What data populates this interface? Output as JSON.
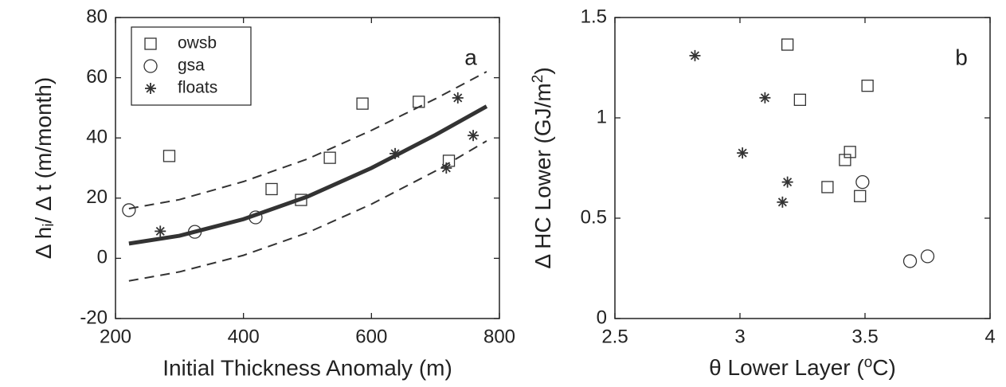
{
  "chart_data": [
    {
      "type": "scatter",
      "xlabel": "Initial Thickness Anomaly (m)",
      "ylabel": [
        "Δ h",
        "i",
        "/ Δ t (m/month)"
      ],
      "annotation": "a",
      "xlim": [
        200,
        800
      ],
      "xticks": [
        200,
        400,
        600,
        800
      ],
      "ylim": [
        -20,
        80
      ],
      "yticks": [
        -20,
        0,
        20,
        40,
        60,
        80
      ],
      "legend": "upper left",
      "series": [
        {
          "name": "owsb",
          "marker": "square",
          "color": "#333333",
          "x": [
            284,
            586,
            674,
            535,
            444,
            490,
            721
          ],
          "values": [
            34,
            51.4,
            52,
            33.4,
            23,
            19.4,
            32.4
          ]
        },
        {
          "name": "gsa",
          "marker": "circle",
          "color": "#333333",
          "x": [
            221,
            324,
            419
          ],
          "values": [
            16,
            8.8,
            13.6
          ]
        },
        {
          "name": "floats",
          "marker": "asterisk",
          "color": "#333333",
          "x": [
            270,
            637,
            717,
            735,
            759
          ],
          "values": [
            9,
            34.8,
            30,
            53.3,
            40.8
          ]
        },
        {
          "marker": "none",
          "line": "solid",
          "color": "#333333",
          "x": [
            221,
            300,
            400,
            500,
            600,
            700,
            780
          ],
          "values": [
            4.9,
            7.5,
            13,
            20.5,
            30,
            41,
            50.5
          ]
        },
        {
          "marker": "none",
          "line": "dashed",
          "color": "#333333",
          "x": [
            221,
            300,
            400,
            500,
            600,
            700,
            780
          ],
          "values": [
            16.5,
            19.5,
            25.5,
            33,
            42.5,
            53,
            62
          ]
        },
        {
          "marker": "none",
          "line": "dashed",
          "color": "#333333",
          "x": [
            221,
            300,
            400,
            500,
            600,
            700,
            780
          ],
          "values": [
            -7.5,
            -4.5,
            1,
            8.5,
            18,
            29,
            39
          ]
        }
      ]
    },
    {
      "type": "scatter",
      "xlabel": [
        "θ Lower Layer (",
        "o",
        "C)"
      ],
      "ylabel": [
        "Δ HC Lower (GJ/m",
        "2",
        ")"
      ],
      "annotation": "b",
      "xlim": [
        2.5,
        4
      ],
      "xticks": [
        2.5,
        3,
        3.5,
        4
      ],
      "ylim": [
        0,
        1.5
      ],
      "yticks": [
        0,
        0.5,
        1,
        1.5
      ],
      "series": [
        {
          "marker": "square",
          "color": "#333333",
          "x": [
            3.19,
            3.24,
            3.51,
            3.44,
            3.42,
            3.35,
            3.48
          ],
          "values": [
            1.365,
            1.09,
            1.16,
            0.83,
            0.79,
            0.655,
            0.61
          ]
        },
        {
          "marker": "circle",
          "color": "#333333",
          "x": [
            3.49,
            3.68,
            3.75
          ],
          "values": [
            0.68,
            0.286,
            0.31
          ]
        },
        {
          "marker": "asterisk",
          "color": "#333333",
          "x": [
            2.82,
            3.1,
            3.01,
            3.19,
            3.17
          ],
          "values": [
            1.31,
            1.1,
            0.825,
            0.68,
            0.58
          ]
        }
      ]
    }
  ]
}
